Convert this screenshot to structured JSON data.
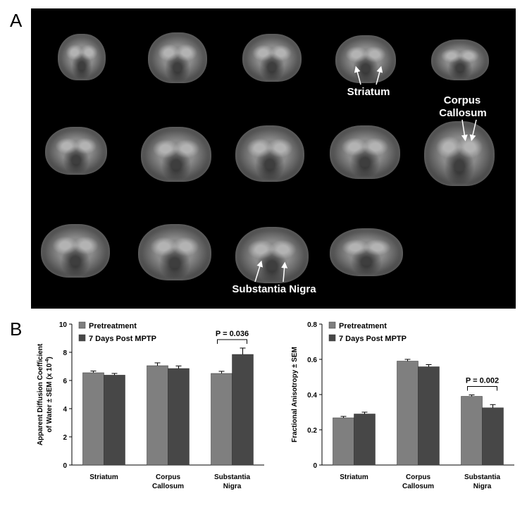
{
  "figure": {
    "panel_a_letter": "A",
    "panel_b_letter": "B",
    "mri_labels": {
      "striatum": "Striatum",
      "corpus_line1": "Corpus",
      "corpus_line2": "Callosum",
      "substantia": "Substantia Nigra"
    }
  },
  "colors": {
    "pretreatment": "#7f7f7f",
    "post": "#474747",
    "background": "#000000"
  },
  "chart_data": [
    {
      "type": "bar",
      "categories": [
        [
          "Striatum"
        ],
        [
          "Corpus",
          "Callosum"
        ],
        [
          "Substantia",
          "Nigra"
        ]
      ],
      "series": [
        {
          "name": "Pretreatment",
          "values": [
            6.55,
            7.05,
            6.5
          ],
          "errors": [
            0.12,
            0.2,
            0.15
          ]
        },
        {
          "name": "7 Days Post MPTP",
          "values": [
            6.38,
            6.85,
            7.85
          ],
          "errors": [
            0.12,
            0.18,
            0.45
          ]
        }
      ],
      "ylabel_line1": "Apparent Diffusion Coefficient",
      "ylabel_line2": "of Water ± SEM (x 10",
      "ylabel_sup": "-4",
      "ylabel_end": ")",
      "ylim": [
        0,
        10
      ],
      "yticks": [
        "0",
        "2",
        "4",
        "6",
        "8",
        "10"
      ],
      "annotation": {
        "text": "P = 0.036",
        "category_index": 2
      },
      "legend": "top-left"
    },
    {
      "type": "bar",
      "categories": [
        [
          "Striatum"
        ],
        [
          "Corpus",
          "Callosum"
        ],
        [
          "Substantia",
          "Nigra"
        ]
      ],
      "series": [
        {
          "name": "Pretreatment",
          "values": [
            0.268,
            0.59,
            0.39
          ],
          "errors": [
            0.008,
            0.01,
            0.008
          ]
        },
        {
          "name": "7 Days Post MPTP",
          "values": [
            0.29,
            0.558,
            0.325
          ],
          "errors": [
            0.01,
            0.012,
            0.018
          ]
        }
      ],
      "ylabel_line1": "Fractional Anisotropy ± SEM",
      "ylim": [
        0,
        0.8
      ],
      "yticks": [
        "0",
        "0.2",
        "0.4",
        "0.6",
        "0.8"
      ],
      "annotation": {
        "text": "P = 0.002",
        "category_index": 2
      },
      "legend": "top-left"
    }
  ]
}
